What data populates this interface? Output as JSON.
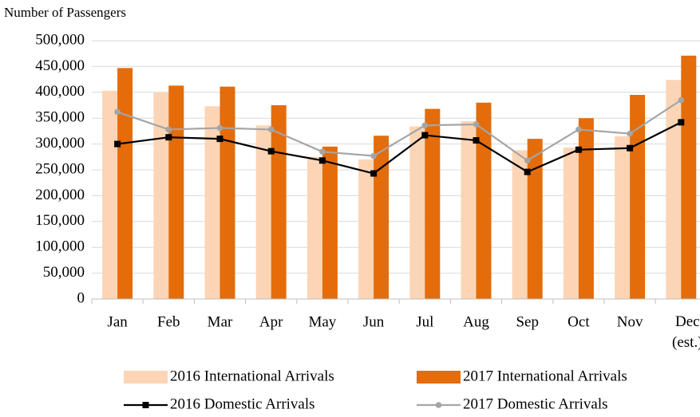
{
  "chart_data": {
    "type": "bar_line",
    "y_axis_label": "Number of Passengers",
    "categories": [
      "Jan",
      "Feb",
      "Mar",
      "Apr",
      "May",
      "Jun",
      "Jul",
      "Aug",
      "Sep",
      "Oct",
      "Nov",
      "Dec (est.)"
    ],
    "series": [
      {
        "name": "2016 International Arrivals",
        "kind": "bar",
        "color": "#fbd5b5",
        "values": [
          403000,
          400000,
          373000,
          336000,
          275000,
          270000,
          334000,
          344000,
          288000,
          293000,
          315000,
          424000
        ]
      },
      {
        "name": "2017 International Arrivals",
        "kind": "bar",
        "color": "#e46c0a",
        "values": [
          447000,
          413000,
          411000,
          375000,
          295000,
          316000,
          368000,
          380000,
          310000,
          350000,
          395000,
          471000
        ]
      },
      {
        "name": "2016 Domestic Arrivals",
        "kind": "line",
        "marker": "square",
        "color": "#000000",
        "values": [
          300000,
          313000,
          310000,
          286000,
          268000,
          243000,
          317000,
          307000,
          246000,
          289000,
          292000,
          342000
        ]
      },
      {
        "name": "2017 Domestic Arrivals",
        "kind": "line",
        "marker": "circle",
        "color": "#a5a5a5",
        "values": [
          362000,
          328000,
          331000,
          328000,
          285000,
          277000,
          336000,
          338000,
          268000,
          328000,
          320000,
          385000
        ]
      }
    ],
    "ylim": [
      0,
      500000
    ],
    "yticks": [
      0,
      {
        "value": 50000,
        "label": "50,000"
      },
      {
        "value": 100000,
        "label": "100,000"
      },
      {
        "value": 150000,
        "label": "150,000"
      },
      {
        "value": 200000,
        "label": "200,000"
      },
      {
        "value": 250000,
        "label": "250,000"
      },
      {
        "value": 300000,
        "label": "300,000"
      },
      {
        "value": 350000,
        "label": "350,000"
      },
      {
        "value": 400000,
        "label": "400,000"
      },
      {
        "value": 450000,
        "label": "450,000"
      },
      {
        "value": 500000,
        "label": "500,000"
      }
    ],
    "grid": true,
    "legend": "bottom"
  }
}
